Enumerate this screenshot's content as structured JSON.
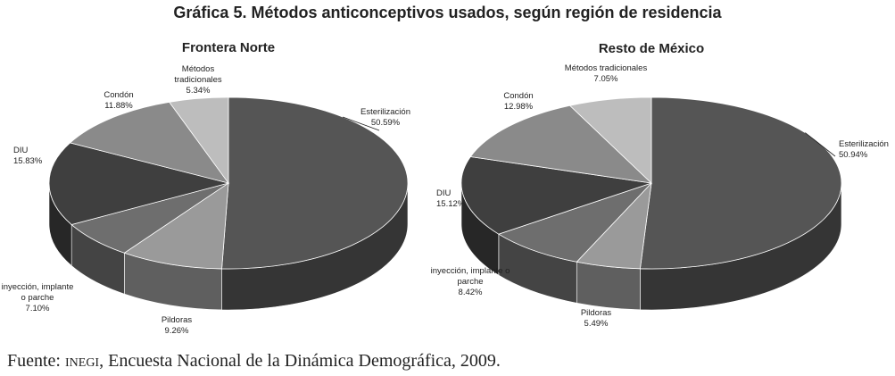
{
  "figure": {
    "title": "Gráfica 5. Métodos anticonceptivos usados, según región de residencia",
    "source_prefix": "Fuente: ",
    "source_org": "inegi",
    "source_rest": ", Encuesta Nacional de la Dinámica Demográfica, 2009."
  },
  "chart_data": [
    {
      "type": "pie",
      "title": "Frontera Norte",
      "slices": [
        {
          "label": "Esterilización",
          "value": 50.59,
          "display": "50.59%",
          "color": "#555555"
        },
        {
          "label": "Pildoras",
          "value": 9.26,
          "display": "9.26%",
          "color": "#9a9a9a"
        },
        {
          "label": "inyección, implante o parche",
          "value": 7.1,
          "display": "7.10%",
          "color": "#6e6e6e"
        },
        {
          "label": "DIU",
          "value": 15.83,
          "display": "15.83%",
          "color": "#3f3f3f"
        },
        {
          "label": "Condón",
          "value": 11.88,
          "display": "11.88%",
          "color": "#8a8a8a"
        },
        {
          "label": "Métodos tradicionales",
          "value": 5.34,
          "display": "5.34%",
          "color": "#bdbdbd"
        }
      ],
      "style": "3d"
    },
    {
      "type": "pie",
      "title": "Resto de México",
      "slices": [
        {
          "label": "Esterilización",
          "value": 50.94,
          "display": "50.94%",
          "color": "#555555"
        },
        {
          "label": "Pildoras",
          "value": 5.49,
          "display": "5.49%",
          "color": "#9a9a9a"
        },
        {
          "label": "inyección, implante o parche",
          "value": 8.42,
          "display": "8.42%",
          "color": "#6e6e6e"
        },
        {
          "label": "DIU",
          "value": 15.12,
          "display": "15.12%",
          "color": "#3f3f3f"
        },
        {
          "label": "Condón",
          "value": 12.98,
          "display": "12.98%",
          "color": "#8a8a8a"
        },
        {
          "label": "Métodos tradicionales",
          "value": 7.05,
          "display": "7.05%",
          "color": "#bdbdbd"
        }
      ],
      "style": "3d"
    }
  ]
}
